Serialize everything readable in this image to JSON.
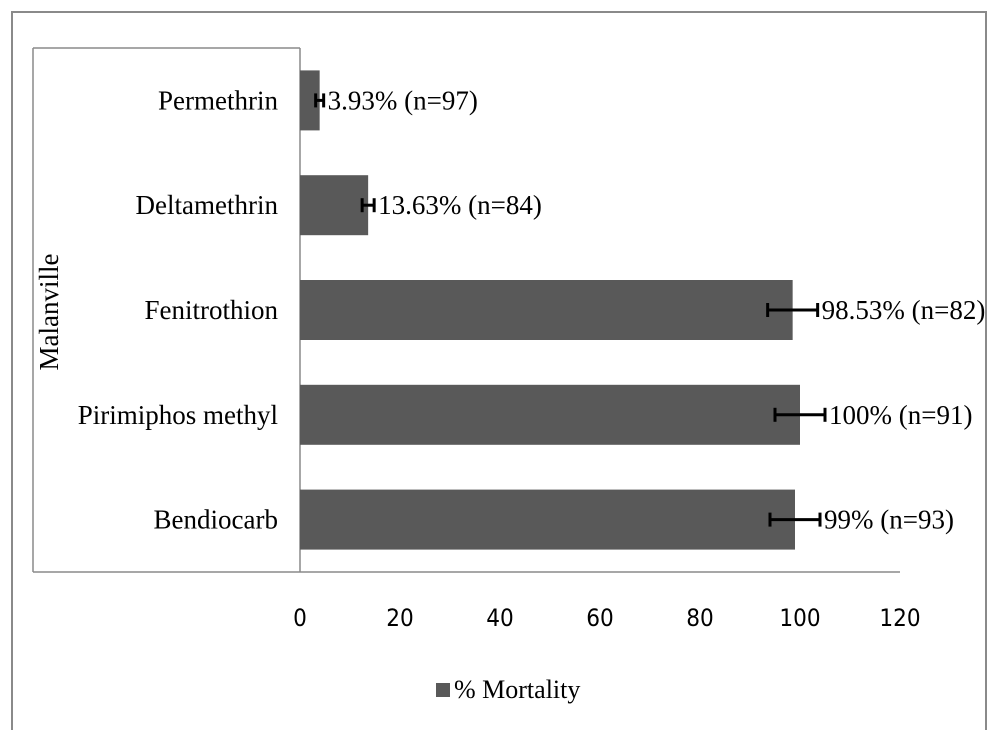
{
  "chart_data": {
    "type": "bar",
    "orientation": "horizontal",
    "group_label": "Malanville",
    "categories": [
      "Permethrin",
      "Deltamethrin",
      "Fenitrothion",
      "Pirimiphos methyl",
      "Bendiocarb"
    ],
    "series": [
      {
        "name": "% Mortality",
        "values": [
          3.93,
          13.63,
          98.53,
          100,
          99
        ],
        "error": [
          0.8,
          1.2,
          5,
          5,
          5
        ],
        "data_labels": [
          "3.93% (n=97)",
          "13.63% (n=84)",
          "98.53% (n=82)",
          "100% (n=91)",
          "99% (n=93)"
        ]
      }
    ],
    "xlim": [
      0,
      120
    ],
    "x_ticks": [
      0,
      20,
      40,
      60,
      80,
      100,
      120
    ],
    "grid": false,
    "legend_position": "bottom",
    "bar_color": "#595959",
    "error_bar_color": "#000000"
  }
}
